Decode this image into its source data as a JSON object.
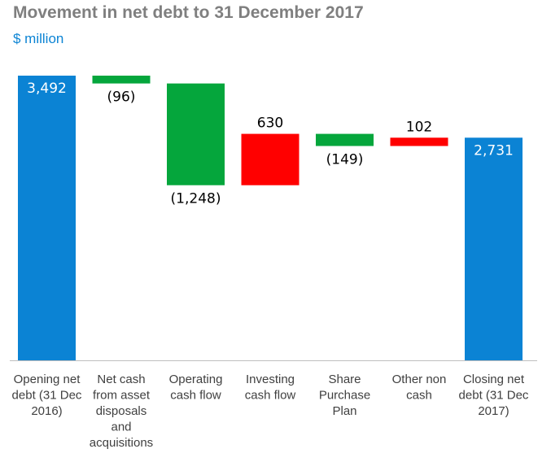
{
  "title": "Movement in net debt to 31 December 2017",
  "subtitle": "$ million",
  "colors": {
    "total": "#0b83d4",
    "decrease": "#05a63c",
    "increase": "#ff0000",
    "axis": "#bfbfbf",
    "label": "#404040"
  },
  "chart_data": {
    "type": "bar",
    "subtype": "waterfall",
    "title": "Movement in net debt to 31 December 2017",
    "ylabel": "$ million",
    "ylim": [
      0,
      3700
    ],
    "grid": false,
    "legend": "none",
    "categories": [
      [
        "Opening net",
        "debt (31 Dec",
        "2016)"
      ],
      [
        "Net cash",
        "from asset",
        "disposals",
        "and",
        "acquisitions"
      ],
      [
        "Operating",
        "cash flow"
      ],
      [
        "Investing",
        "cash flow"
      ],
      [
        "Share",
        "Purchase",
        "Plan"
      ],
      [
        "Other non",
        "cash"
      ],
      [
        "Closing net",
        "debt (31 Dec",
        "2017)"
      ]
    ],
    "values": [
      3492,
      -96,
      -1248,
      630,
      -149,
      102,
      2731
    ],
    "kinds": [
      "total",
      "delta",
      "delta",
      "delta",
      "delta",
      "delta",
      "total"
    ],
    "data_labels": [
      "3,492",
      "(96)",
      "(1,248)",
      "630",
      "(149)",
      "102",
      "2,731"
    ]
  }
}
